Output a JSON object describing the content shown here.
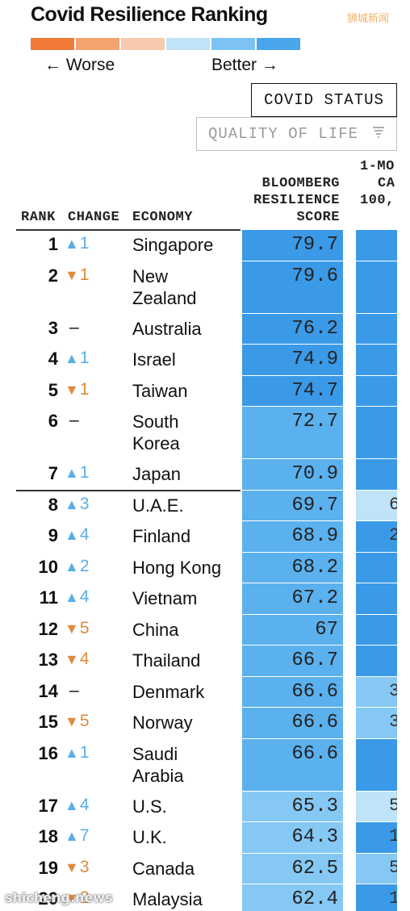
{
  "title": "Covid Resilience Ranking",
  "watermark_top": "狮城新闻",
  "watermark_bottom": "shicheng.news",
  "scale_colors": [
    "#f07a36",
    "#f4a26e",
    "#f7c9ad",
    "#bfe3f7",
    "#7cc2f2",
    "#49a6ea"
  ],
  "legend": {
    "worse_label": "Worse",
    "better_label": "Better",
    "worse_icon": "arrow-left-icon",
    "better_icon": "arrow-right-icon"
  },
  "tabs": {
    "covid_status": "COVID STATUS",
    "quality_of_life": "QUALITY OF LIFE",
    "filter_icon": "filter-icon"
  },
  "colors": {
    "up": "#5aaee6",
    "down": "#e08a3c",
    "score_dark": "#3a9ae8",
    "score_mid": "#5bb1ee",
    "score_light": "#86c8f4",
    "score_pale": "#bfe3f7"
  },
  "table": {
    "headers": {
      "rank": "RANK",
      "change": "CHANGE",
      "economy": "ECONOMY",
      "score": [
        "BLOOMBERG",
        "RESILIENCE",
        "SCORE"
      ],
      "next": [
        "1-MO",
        "CA",
        "100,"
      ]
    },
    "rows": [
      {
        "rank": "1",
        "dir": "up",
        "delta": "1",
        "economy": "Singapore",
        "score": "79.7",
        "score_color": "#3a9ae8",
        "next_color": "#3a9ae8",
        "next_text": ""
      },
      {
        "rank": "2",
        "dir": "down",
        "delta": "1",
        "economy": "New Zealand",
        "score": "79.6",
        "score_color": "#3a9ae8",
        "next_color": "#3a9ae8",
        "next_text": ""
      },
      {
        "rank": "3",
        "dir": "none",
        "delta": "–",
        "economy": "Australia",
        "score": "76.2",
        "score_color": "#3a9ae8",
        "next_color": "#3a9ae8",
        "next_text": ""
      },
      {
        "rank": "4",
        "dir": "up",
        "delta": "1",
        "economy": "Israel",
        "score": "74.9",
        "score_color": "#3a9ae8",
        "next_color": "#3a9ae8",
        "next_text": ""
      },
      {
        "rank": "5",
        "dir": "down",
        "delta": "1",
        "economy": "Taiwan",
        "score": "74.7",
        "score_color": "#3a9ae8",
        "next_color": "#3a9ae8",
        "next_text": ""
      },
      {
        "rank": "6",
        "dir": "none",
        "delta": "–",
        "economy": "South Korea",
        "score": "72.7",
        "score_color": "#5bb1ee",
        "next_color": "#3a9ae8",
        "next_text": ""
      },
      {
        "rank": "7",
        "dir": "up",
        "delta": "1",
        "economy": "Japan",
        "score": "70.9",
        "score_color": "#5bb1ee",
        "next_color": "#3a9ae8",
        "next_text": ""
      },
      {
        "rank": "8",
        "dir": "up",
        "delta": "3",
        "economy": "U.A.E.",
        "score": "69.7",
        "score_color": "#5bb1ee",
        "next_color": "#bfe3f7",
        "next_text": "6"
      },
      {
        "rank": "9",
        "dir": "up",
        "delta": "4",
        "economy": "Finland",
        "score": "68.9",
        "score_color": "#5bb1ee",
        "next_color": "#3a9ae8",
        "next_text": "2"
      },
      {
        "rank": "10",
        "dir": "up",
        "delta": "2",
        "economy": "Hong Kong",
        "score": "68.2",
        "score_color": "#5bb1ee",
        "next_color": "#3a9ae8",
        "next_text": ""
      },
      {
        "rank": "11",
        "dir": "up",
        "delta": "4",
        "economy": "Vietnam",
        "score": "67.2",
        "score_color": "#5bb1ee",
        "next_color": "#3a9ae8",
        "next_text": ""
      },
      {
        "rank": "12",
        "dir": "down",
        "delta": "5",
        "economy": "China",
        "score": "67",
        "score_color": "#5bb1ee",
        "next_color": "#3a9ae8",
        "next_text": ""
      },
      {
        "rank": "13",
        "dir": "down",
        "delta": "4",
        "economy": "Thailand",
        "score": "66.7",
        "score_color": "#5bb1ee",
        "next_color": "#3a9ae8",
        "next_text": ""
      },
      {
        "rank": "14",
        "dir": "none",
        "delta": "–",
        "economy": "Denmark",
        "score": "66.6",
        "score_color": "#5bb1ee",
        "next_color": "#86c8f4",
        "next_text": "3"
      },
      {
        "rank": "15",
        "dir": "down",
        "delta": "5",
        "economy": "Norway",
        "score": "66.6",
        "score_color": "#5bb1ee",
        "next_color": "#86c8f4",
        "next_text": "3"
      },
      {
        "rank": "16",
        "dir": "up",
        "delta": "1",
        "economy": "Saudi Arabia",
        "score": "66.6",
        "score_color": "#5bb1ee",
        "next_color": "#3a9ae8",
        "next_text": ""
      },
      {
        "rank": "17",
        "dir": "up",
        "delta": "4",
        "economy": "U.S.",
        "score": "65.3",
        "score_color": "#86c8f4",
        "next_color": "#bfe3f7",
        "next_text": "5"
      },
      {
        "rank": "18",
        "dir": "up",
        "delta": "7",
        "economy": "U.K.",
        "score": "64.3",
        "score_color": "#86c8f4",
        "next_color": "#3a9ae8",
        "next_text": "1"
      },
      {
        "rank": "19",
        "dir": "down",
        "delta": "3",
        "economy": "Canada",
        "score": "62.5",
        "score_color": "#86c8f4",
        "next_color": "#86c8f4",
        "next_text": "5"
      },
      {
        "rank": "20",
        "dir": "down",
        "delta": "2",
        "economy": "Malaysia",
        "score": "62.4",
        "score_color": "#86c8f4",
        "next_color": "#3a9ae8",
        "next_text": "1"
      }
    ]
  }
}
